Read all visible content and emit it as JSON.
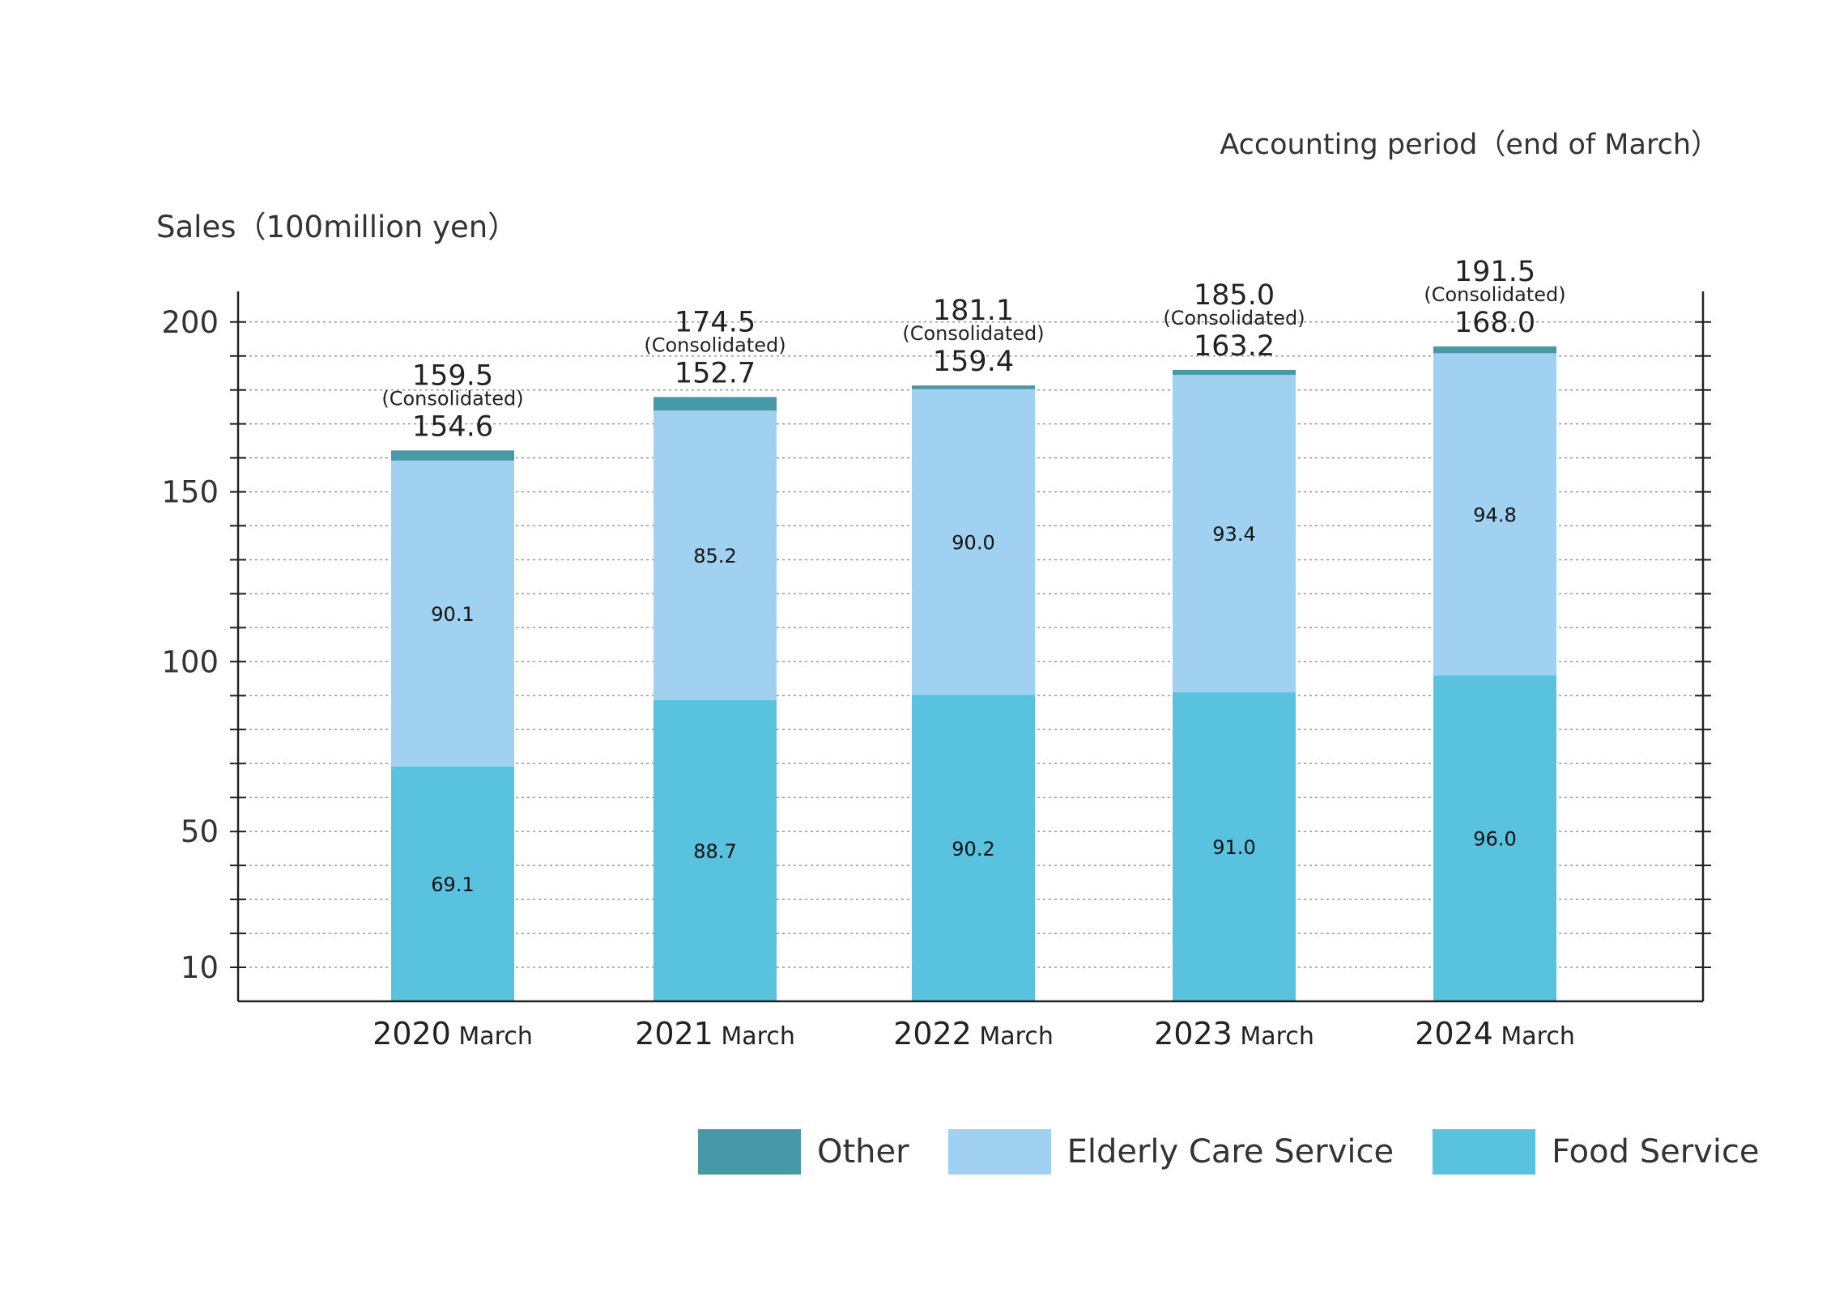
{
  "header": {
    "period_note": "Accounting period（end of March）",
    "y_title": "Sales（100million yen）"
  },
  "legend": {
    "items": [
      {
        "label": "Other",
        "color": "#4899a8"
      },
      {
        "label": "Elderly Care Service",
        "color": "#a1d1f1"
      },
      {
        "label": "Food Service",
        "color": "#58c2df"
      }
    ]
  },
  "chart_data": {
    "type": "bar",
    "stacked": true,
    "title": "",
    "xlabel": "",
    "ylabel": "Sales（100million yen）",
    "note": "Accounting period（end of March）",
    "ylim": [
      0,
      209
    ],
    "y_ticks": [
      {
        "value": 10,
        "label": "10"
      },
      {
        "value": 50,
        "label": "50"
      },
      {
        "value": 100,
        "label": "100"
      },
      {
        "value": 150,
        "label": "150"
      },
      {
        "value": 200,
        "label": "200"
      }
    ],
    "grid": true,
    "grid_step": 10,
    "categories": [
      "2020",
      "2021",
      "2022",
      "2023",
      "2024"
    ],
    "category_unit": "March",
    "series": [
      {
        "name": "Food Service",
        "color": "#58c2df",
        "values": [
          69.1,
          88.7,
          90.2,
          91.0,
          96.0
        ]
      },
      {
        "name": "Elderly Care Service",
        "color": "#a1d1f1",
        "values": [
          90.1,
          85.2,
          90.0,
          93.4,
          94.8
        ]
      },
      {
        "name": "Other",
        "color": "#4899a8",
        "values": [
          3.0,
          4.0,
          1.1,
          1.5,
          2.0
        ]
      }
    ],
    "totals": [
      {
        "consolidated": "159.5",
        "note": "(Consolidated)",
        "sub": "154.6"
      },
      {
        "consolidated": "174.5",
        "note": "(Consolidated)",
        "sub": "152.7"
      },
      {
        "consolidated": "181.1",
        "note": "(Consolidated)",
        "sub": "159.4"
      },
      {
        "consolidated": "185.0",
        "note": "(Consolidated)",
        "sub": "163.2"
      },
      {
        "consolidated": "191.5",
        "note": "(Consolidated)",
        "sub": "168.0"
      }
    ],
    "legend_position": "bottom-right"
  }
}
